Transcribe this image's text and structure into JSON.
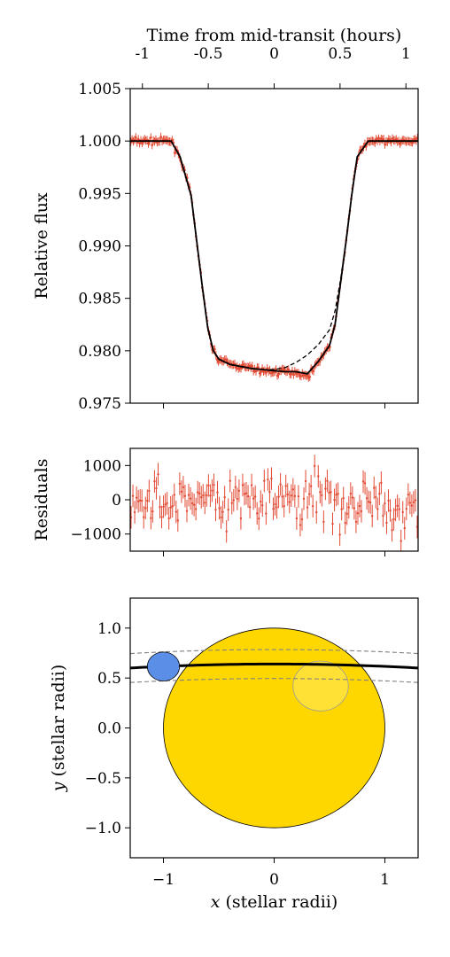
{
  "chart_data": [
    {
      "type": "line",
      "panel": "light-curve",
      "ylabel": "Relative flux",
      "top_xlabel": "Time from mid-transit (hours)",
      "top_xticks": [
        -1,
        -0.5,
        0,
        0.5,
        1
      ],
      "top_xtick_labels": [
        "-1",
        "-0.5",
        "0",
        "0.5",
        "1"
      ],
      "xlim": [
        -1.3,
        1.3
      ],
      "ylim": [
        0.975,
        1.005
      ],
      "yticks": [
        0.975,
        0.98,
        0.985,
        0.99,
        0.995,
        1.0,
        1.005
      ],
      "ytick_labels": [
        "0.975",
        "0.980",
        "0.985",
        "0.990",
        "0.995",
        "1.000",
        "1.005"
      ],
      "grid": false,
      "series": [
        {
          "style": "errorbar",
          "color": "#e24a33",
          "x": [
            -1.3,
            -1.1,
            -0.93,
            -0.85,
            -0.75,
            -0.7,
            -0.65,
            -0.6,
            -0.55,
            -0.5,
            -0.4,
            -0.3,
            -0.2,
            -0.1,
            0.0,
            0.1,
            0.2,
            0.3,
            0.4,
            0.5,
            0.55,
            0.6,
            0.65,
            0.7,
            0.75,
            0.85,
            0.93,
            1.1,
            1.3
          ],
          "y": [
            1.0,
            1.0,
            1.0,
            0.9985,
            0.9948,
            0.9905,
            0.9862,
            0.9822,
            0.98,
            0.9792,
            0.9787,
            0.9785,
            0.9783,
            0.9781,
            0.978,
            0.978,
            0.978,
            0.9775,
            0.979,
            0.9805,
            0.9825,
            0.9865,
            0.9905,
            0.9948,
            0.9985,
            1.0,
            1.0,
            1.0,
            1.0
          ]
        },
        {
          "style": "solid",
          "color": "#000000",
          "x": [
            -1.3,
            -0.93,
            -0.85,
            -0.75,
            -0.7,
            -0.65,
            -0.6,
            -0.55,
            -0.5,
            -0.4,
            -0.3,
            -0.2,
            -0.1,
            0.0,
            0.1,
            0.2,
            0.3,
            0.4,
            0.5,
            0.55,
            0.6,
            0.65,
            0.7,
            0.75,
            0.85,
            0.93,
            1.3
          ],
          "y": [
            1.0,
            1.0,
            0.9985,
            0.9948,
            0.9905,
            0.9862,
            0.9822,
            0.98,
            0.9792,
            0.9787,
            0.9785,
            0.9783,
            0.9782,
            0.9781,
            0.978,
            0.978,
            0.9778,
            0.979,
            0.9805,
            0.9825,
            0.9865,
            0.9905,
            0.9948,
            0.9985,
            1.0,
            1.0,
            1.0
          ]
        },
        {
          "style": "dashed",
          "color": "#000000",
          "x": [
            -1.3,
            -0.93,
            -0.85,
            -0.75,
            -0.7,
            -0.65,
            -0.6,
            -0.55,
            -0.5,
            -0.4,
            -0.3,
            -0.2,
            -0.1,
            0.0,
            0.1,
            0.2,
            0.3,
            0.4,
            0.5,
            0.55,
            0.6,
            0.65,
            0.7,
            0.75,
            0.85,
            0.93,
            1.3
          ],
          "y": [
            1.0,
            1.0,
            0.9985,
            0.9948,
            0.9905,
            0.9862,
            0.9822,
            0.98,
            0.9792,
            0.9787,
            0.9785,
            0.9783,
            0.9782,
            0.9782,
            0.9784,
            0.9789,
            0.9796,
            0.9806,
            0.982,
            0.9838,
            0.9868,
            0.9905,
            0.9948,
            0.9985,
            1.0,
            1.0,
            1.0
          ]
        }
      ]
    },
    {
      "type": "scatter",
      "panel": "residuals",
      "ylabel": "Residuals",
      "xlim": [
        -1.3,
        1.3
      ],
      "ylim": [
        -1500,
        1500
      ],
      "yticks": [
        -1000,
        0,
        1000
      ],
      "ytick_labels": [
        "−1000",
        "0",
        "1000"
      ],
      "point_count": 160,
      "noise_std": 400,
      "color": "#e24a33"
    },
    {
      "type": "scatter",
      "panel": "sky-geometry",
      "xlabel_italic": "x",
      "xlabel_rest": " (stellar radii)",
      "ylabel_italic": "y",
      "ylabel_rest": " (stellar radii)",
      "xlim": [
        -1.3,
        1.3
      ],
      "ylim": [
        -1.3,
        1.3
      ],
      "xticks": [
        -1,
        0,
        1
      ],
      "xtick_labels": [
        "−1",
        "0",
        "1"
      ],
      "yticks": [
        -1.0,
        -0.5,
        0.0,
        0.5,
        1.0
      ],
      "ytick_labels": [
        "−1.0",
        "−0.5",
        "0.0",
        "0.5",
        "1.0"
      ],
      "star": {
        "cx": 0,
        "cy": 0,
        "r": 1.0,
        "color": "#ffd700"
      },
      "planet": {
        "cx": -1.0,
        "cy": 0.615,
        "r": 0.145,
        "color": "#5b8ee6"
      },
      "spot": {
        "cx": 0.42,
        "cy": 0.42,
        "r": 0.25,
        "color": "#ffe135"
      },
      "transit_path": {
        "y_center": 0.64,
        "y_edge": 0.6,
        "band": 0.145
      }
    }
  ]
}
